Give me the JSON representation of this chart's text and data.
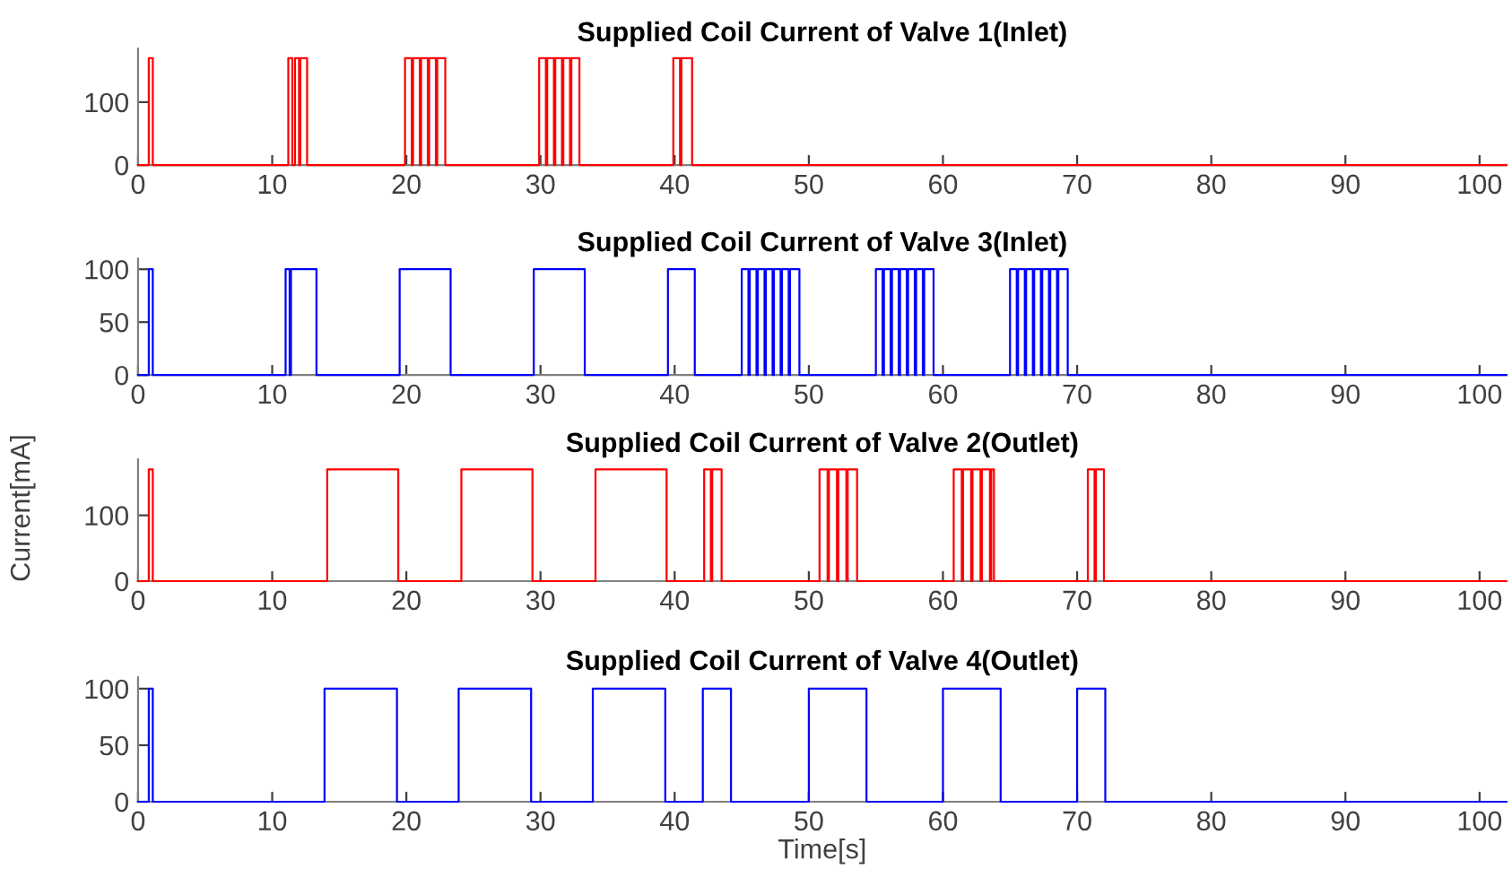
{
  "chart_data": [
    {
      "type": "step",
      "title": "Supplied Coil Current of Valve 1(Inlet)",
      "xlim": [
        0,
        102
      ],
      "ylim": [
        0,
        185
      ],
      "xticks": [
        0,
        10,
        20,
        30,
        40,
        50,
        60,
        70,
        80,
        90,
        100
      ],
      "yticks": [
        0,
        100
      ],
      "grid": false,
      "series": [
        {
          "color": "#ff0000",
          "x": [
            0,
            0.8,
            1.1,
            11.2,
            11.5,
            11.7,
            12.0,
            12.1,
            12.6,
            19.9,
            20.4,
            20.5,
            21.0,
            21.1,
            21.6,
            21.7,
            22.2,
            22.3,
            22.9,
            29.9,
            30.4,
            30.5,
            31.0,
            31.1,
            31.6,
            31.7,
            32.2,
            32.3,
            32.9,
            39.9,
            40.4,
            40.5,
            41.3,
            102
          ],
          "values": [
            0,
            170,
            0,
            170,
            0,
            170,
            0,
            170,
            0,
            170,
            0,
            170,
            0,
            170,
            0,
            170,
            0,
            170,
            0,
            170,
            0,
            170,
            0,
            170,
            0,
            170,
            0,
            170,
            0,
            170,
            0,
            170,
            0,
            0
          ]
        }
      ]
    },
    {
      "type": "step",
      "title": "Supplied Coil Current of Valve 3(Inlet)",
      "xlim": [
        0,
        102
      ],
      "ylim": [
        0,
        110
      ],
      "xticks": [
        0,
        10,
        20,
        30,
        40,
        50,
        60,
        70,
        80,
        90,
        100
      ],
      "yticks": [
        0,
        50,
        100
      ],
      "grid": false,
      "series": [
        {
          "color": "#0000ff",
          "x": [
            0,
            0.8,
            1.1,
            11.0,
            11.3,
            11.4,
            13.3,
            19.5,
            23.3,
            29.5,
            33.3,
            39.5,
            41.5,
            45.0,
            45.5,
            45.6,
            46.1,
            46.2,
            46.7,
            46.8,
            47.3,
            47.4,
            47.9,
            48.0,
            48.5,
            48.6,
            49.3,
            55.0,
            55.5,
            55.6,
            56.1,
            56.2,
            56.7,
            56.8,
            57.3,
            57.4,
            57.9,
            58.0,
            58.5,
            58.6,
            59.3,
            65.0,
            65.5,
            65.6,
            66.1,
            66.2,
            66.7,
            66.8,
            67.3,
            67.4,
            67.9,
            68.0,
            68.5,
            68.6,
            69.3,
            102
          ],
          "values": [
            0,
            100,
            0,
            100,
            0,
            100,
            0,
            100,
            0,
            100,
            0,
            100,
            0,
            100,
            0,
            100,
            0,
            100,
            0,
            100,
            0,
            100,
            0,
            100,
            0,
            100,
            0,
            100,
            0,
            100,
            0,
            100,
            0,
            100,
            0,
            100,
            0,
            100,
            0,
            100,
            0,
            100,
            0,
            100,
            0,
            100,
            0,
            100,
            0,
            100,
            0,
            100,
            0,
            100,
            0,
            0
          ]
        }
      ]
    },
    {
      "type": "step",
      "title": "Supplied Coil Current of Valve 2(Outlet)",
      "ylabel": "Current[mA]",
      "xlim": [
        0,
        102
      ],
      "ylim": [
        0,
        185
      ],
      "xticks": [
        0,
        10,
        20,
        30,
        40,
        50,
        60,
        70,
        80,
        90,
        100
      ],
      "yticks": [
        0,
        100
      ],
      "grid": false,
      "series": [
        {
          "color": "#ff0000",
          "x": [
            0,
            0.8,
            1.1,
            14.1,
            19.4,
            24.1,
            29.4,
            34.1,
            39.4,
            42.2,
            42.7,
            42.8,
            43.5,
            50.8,
            51.4,
            51.5,
            52.1,
            52.2,
            52.8,
            52.9,
            53.6,
            60.8,
            61.4,
            61.5,
            62.1,
            62.2,
            62.8,
            62.9,
            63.5,
            63.6,
            63.8,
            70.8,
            71.3,
            71.4,
            72.0,
            102
          ],
          "values": [
            0,
            170,
            0,
            170,
            0,
            170,
            0,
            170,
            0,
            170,
            0,
            170,
            0,
            170,
            0,
            170,
            0,
            170,
            0,
            170,
            0,
            170,
            0,
            170,
            0,
            170,
            0,
            170,
            0,
            170,
            0,
            170,
            0,
            170,
            0,
            0
          ]
        }
      ]
    },
    {
      "type": "step",
      "title": "Supplied Coil Current of Valve 4(Outlet)",
      "xlabel": "Time[s]",
      "xlim": [
        0,
        102
      ],
      "ylim": [
        0,
        110
      ],
      "xticks": [
        0,
        10,
        20,
        30,
        40,
        50,
        60,
        70,
        80,
        90,
        100
      ],
      "yticks": [
        0,
        50,
        100
      ],
      "grid": false,
      "series": [
        {
          "color": "#0000ff",
          "x": [
            0,
            0.8,
            1.1,
            13.9,
            19.3,
            23.9,
            29.3,
            33.9,
            39.3,
            42.1,
            44.2,
            50.0,
            54.3,
            60.0,
            64.3,
            70.0,
            72.1,
            102
          ],
          "values": [
            0,
            100,
            0,
            100,
            0,
            100,
            0,
            100,
            0,
            100,
            0,
            100,
            0,
            100,
            0,
            100,
            0,
            0
          ]
        }
      ]
    }
  ]
}
